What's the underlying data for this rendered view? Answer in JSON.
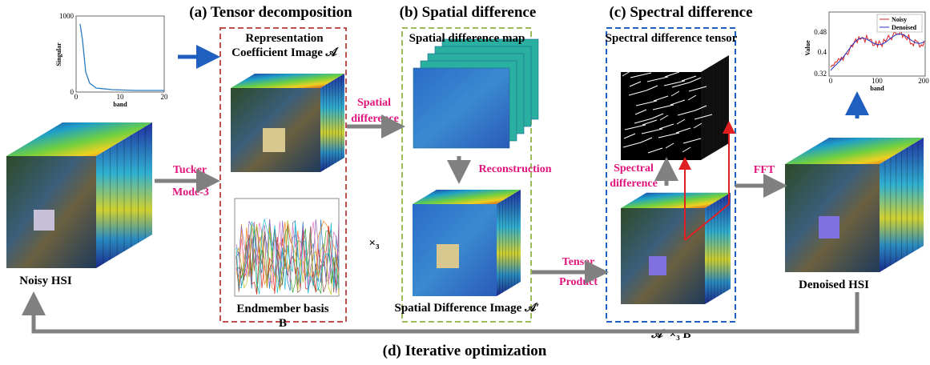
{
  "titles": [
    "(a) Tensor decomposition",
    "(b) Spatial difference",
    "(c) Spectral difference",
    "(d) Iterative optimization"
  ],
  "labels": {
    "noisy_hsi": "Noisy HSI",
    "denoised_hsi": "Denoised HSI",
    "rep_line1": "Representation",
    "rep_line2": "Coefficient Image 𝒜",
    "endmember_line1": "Endmember basis",
    "endmember_line2": "B",
    "spatial_map": "Spatial difference map",
    "spatial_image": "Spatial Difference Image 𝒜′",
    "spectral_tensor": "Spectral difference tensor",
    "product": "𝒜′ ×₃ B",
    "mode3": "×₃"
  },
  "arrow_labels": {
    "tucker": [
      "Tucker",
      "Mode-3"
    ],
    "spatial": [
      "Spatial",
      "difference"
    ],
    "reconstruction": "Reconstruction",
    "tensor_product": [
      "Tensor",
      "Product"
    ],
    "spectral": [
      "Spectral",
      "difference"
    ],
    "fft": "FFT"
  },
  "singular_plot": {
    "ylabel": "Singular",
    "xlabel": "band",
    "yticks": [
      "1000",
      "0"
    ],
    "xticks": [
      "0",
      "10",
      "20"
    ]
  },
  "value_plot": {
    "ylabel": "Value",
    "xlabel": "band",
    "yticks": [
      "0.48",
      "0.4",
      "0.32"
    ],
    "xticks": [
      "0",
      "100",
      "200"
    ],
    "legend": [
      "Noisy",
      "Denoised"
    ]
  }
}
